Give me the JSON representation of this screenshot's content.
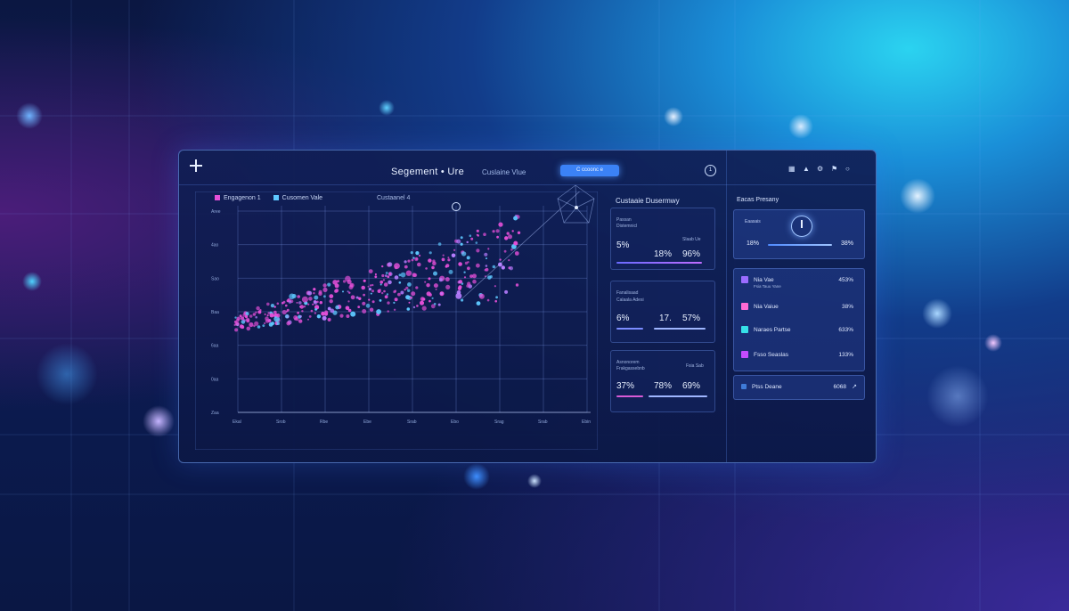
{
  "toolbar": {
    "title": "Segement • Ure",
    "subtitle": "Cuslaine Vlue",
    "button": "C ccoonc e",
    "clock_glyph": "1"
  },
  "chart": {
    "legend": [
      {
        "label": "Engagenon 1",
        "color": "#e44fd8"
      },
      {
        "label": "Cusomen Vale",
        "color": "#5ec8ff"
      }
    ],
    "legend_right": "Custaanel 4",
    "y_ticks": [
      "Aree",
      "4ao",
      "Sao",
      "Baa",
      "6aa",
      "0aa",
      "Zaa"
    ],
    "x_ticks": [
      "Ekal",
      "Srob",
      "Rbe",
      "Ebe",
      "Srab",
      "Ebo",
      "Srag",
      "Srab",
      "Ebin"
    ]
  },
  "chart_data": {
    "type": "scatter",
    "series": [
      {
        "name": "Engagenon 1",
        "color": "#e44fd8"
      },
      {
        "name": "Cusomen Vale",
        "color": "#5ec8ff"
      }
    ]
  },
  "mid_panel": {
    "title": "Custaaie Dusermwy",
    "cards": [
      {
        "label1": "Passan",
        "label2": "Distemnicl",
        "label3": "Slaab Ue",
        "v1": "5%",
        "v2": "18%",
        "v3": "96%"
      },
      {
        "label1": "Fanalisaad",
        "label2": "Calaala Adesi",
        "v1": "6%",
        "v2": "17.",
        "v3": "57%"
      },
      {
        "label1": "Asnonorem",
        "label2": "Frakgassebnb",
        "label3": "Fsia Sab",
        "v1": "37%",
        "v2": "78%",
        "v3": "69%"
      }
    ]
  },
  "right_panel": {
    "title": "Eacas Presany",
    "gauge": {
      "label": "Eaasais",
      "left": "18%",
      "right": "38%"
    },
    "rows": [
      {
        "name": "Nia Vae",
        "sub": "Fsia Tauu Yane",
        "value": "453%",
        "color": "#9b6cff"
      },
      {
        "name": "Nia Vaiue",
        "value": "38%",
        "color": "#ff6ad5"
      },
      {
        "name": "Naraes Partse",
        "value": "633%",
        "color": "#36e0e8"
      },
      {
        "name": "Fsso Seaslas",
        "value": "133%",
        "color": "#c44cff"
      }
    ],
    "footer": {
      "name": "Ptss Deane",
      "value": "6068"
    }
  }
}
